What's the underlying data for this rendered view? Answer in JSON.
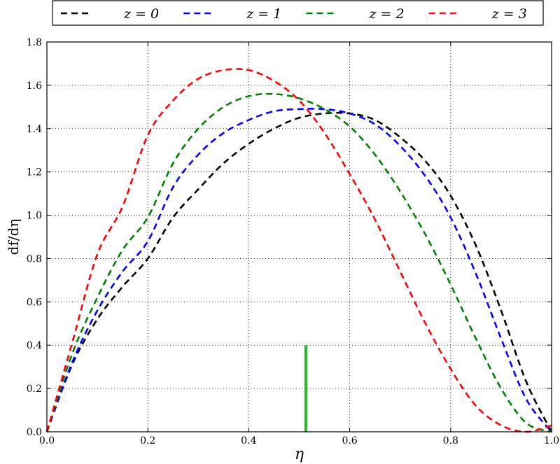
{
  "chart_data": {
    "type": "line",
    "title": "",
    "xlabel": "η",
    "ylabel": "df/dη",
    "xlim": [
      0.0,
      1.0
    ],
    "ylim": [
      0.0,
      1.8
    ],
    "grid": true,
    "grid_style": "dotted",
    "legend_placement": "top, outside plot, single row",
    "x_ticks": [
      "0.0",
      "0.2",
      "0.4",
      "0.6",
      "0.8",
      "1.0"
    ],
    "y_ticks": [
      "0.0",
      "0.2",
      "0.4",
      "0.6",
      "0.8",
      "1.0",
      "1.2",
      "1.4",
      "1.6",
      "1.8"
    ],
    "x": [
      0.0,
      0.05,
      0.1,
      0.15,
      0.2,
      0.25,
      0.3,
      0.35,
      0.4,
      0.45,
      0.5,
      0.55,
      0.6,
      0.65,
      0.7,
      0.75,
      0.8,
      0.85,
      0.9,
      0.95,
      1.0
    ],
    "series": [
      {
        "name": "z = 0",
        "color": "#000000",
        "style": "dashed",
        "values": [
          0.0,
          0.31,
          0.52,
          0.67,
          0.8,
          0.99,
          1.12,
          1.24,
          1.33,
          1.4,
          1.45,
          1.47,
          1.47,
          1.44,
          1.36,
          1.25,
          1.09,
          0.86,
          0.56,
          0.23,
          0.0
        ]
      },
      {
        "name": "z = 1",
        "color": "#0000ff",
        "style": "dashed",
        "values": [
          0.0,
          0.32,
          0.56,
          0.74,
          0.88,
          1.13,
          1.28,
          1.38,
          1.44,
          1.48,
          1.49,
          1.49,
          1.47,
          1.42,
          1.32,
          1.18,
          0.99,
          0.73,
          0.43,
          0.15,
          0.0
        ]
      },
      {
        "name": "z = 2",
        "color": "#008000",
        "style": "dashed",
        "values": [
          0.0,
          0.36,
          0.62,
          0.84,
          0.99,
          1.24,
          1.4,
          1.5,
          1.55,
          1.56,
          1.54,
          1.49,
          1.41,
          1.28,
          1.11,
          0.91,
          0.68,
          0.43,
          0.2,
          0.04,
          0.0
        ]
      },
      {
        "name": "z = 3",
        "color": "#ff0000",
        "style": "dashed",
        "values": [
          0.0,
          0.41,
          0.82,
          1.04,
          1.37,
          1.53,
          1.63,
          1.67,
          1.67,
          1.62,
          1.53,
          1.38,
          1.19,
          0.98,
          0.74,
          0.5,
          0.29,
          0.12,
          0.03,
          0.0,
          0.03
        ]
      }
    ],
    "annotations": [
      {
        "type": "vertical-line",
        "color": "#22bb22",
        "x": 0.513,
        "y_from": 0.0,
        "y_to": 0.4
      }
    ]
  }
}
